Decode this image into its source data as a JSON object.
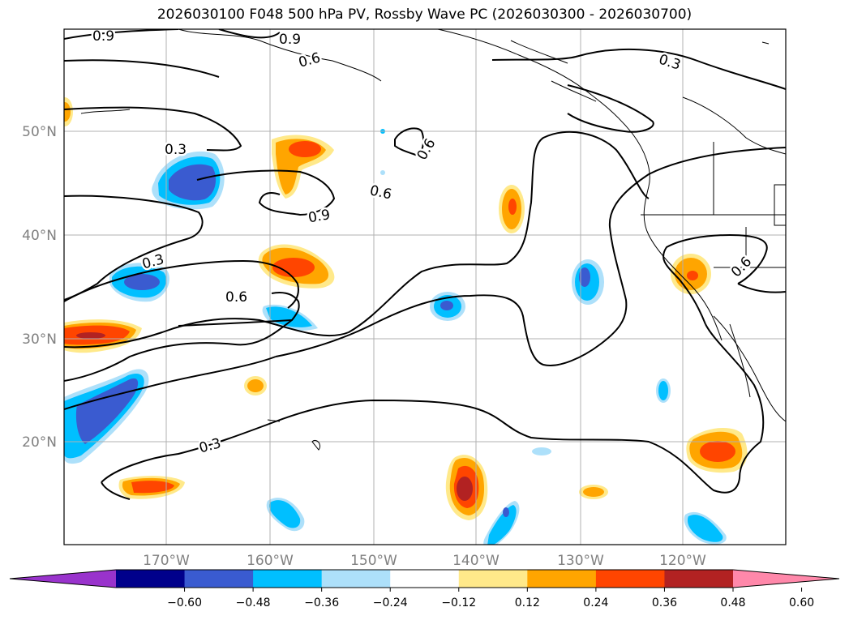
{
  "title": "2026030100 F048 500 hPa PV, Rossby Wave PC (2026030300 - 2026030700)",
  "lat_labels": [
    "50°N",
    "40°N",
    "30°N",
    "20°N"
  ],
  "lon_labels": [
    "170°W",
    "160°W",
    "150°W",
    "140°W",
    "130°W",
    "120°W"
  ],
  "contour_labels": [
    "0.9",
    "0.9",
    "0.6",
    "0.3",
    "0.3",
    "0.6",
    "0.6",
    "0.9",
    "0.3",
    "0.6",
    "0.3",
    "0.6"
  ],
  "colorbar": {
    "ticks": [
      "−0.60",
      "−0.48",
      "−0.36",
      "−0.24",
      "−0.12",
      "0.12",
      "0.24",
      "0.36",
      "0.48",
      "0.60"
    ],
    "colors": [
      "#9933cc",
      "#00008b",
      "#3a5bd0",
      "#00bfff",
      "#ade0fa",
      "#ffffff",
      "#ffe98a",
      "#ffa500",
      "#ff4500",
      "#b22222",
      "#ff88aa"
    ]
  },
  "colors": {
    "land_outline": "#000000",
    "grid": "#b0b0b0"
  }
}
